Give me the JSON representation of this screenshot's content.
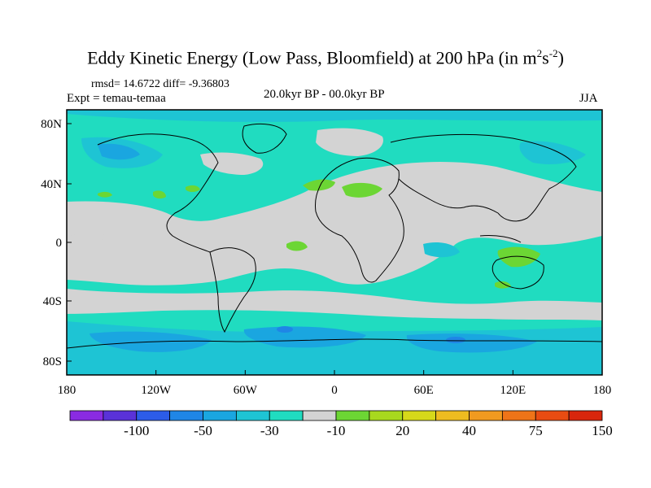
{
  "title": {
    "main": "Eddy Kinetic Energy (Low Pass, Bloomfield) at 200 hPa (in m",
    "sup1": "2",
    "mid": "s",
    "sup2": "-2",
    "end": ")"
  },
  "stats": "rmsd= 14.6722 diff= -9.36803",
  "expt": "Expt = temau-temaa",
  "period": "20.0kyr BP - 00.0kyr BP",
  "season": "JJA",
  "lat_ticks": [
    "80N",
    "40N",
    "0",
    "40S",
    "80S"
  ],
  "lon_ticks": [
    "180",
    "120W",
    "60W",
    "0",
    "60E",
    "120E",
    "180"
  ],
  "colorbar": {
    "colors": [
      "#8a2be2",
      "#5a32d8",
      "#2c5ce8",
      "#1f86e6",
      "#1aa6e0",
      "#1ec4d4",
      "#20dcc0",
      "#d3d3d3",
      "#6cd634",
      "#a8d81e",
      "#d6d81a",
      "#eebc20",
      "#f09a20",
      "#ee7418",
      "#e84c12",
      "#d8260c"
    ],
    "labels": [
      "-100",
      "-50",
      "-30",
      "-10",
      "20",
      "40",
      "75",
      "150"
    ]
  },
  "legend_colors": {
    "ocean_base": "#20dcc0",
    "neutral": "#d3d3d3",
    "blue_light": "#1ec4d4",
    "blue_mid": "#1aa6e0",
    "blue_dark": "#1f86e6",
    "green": "#6cd634",
    "coast": "#000000"
  }
}
